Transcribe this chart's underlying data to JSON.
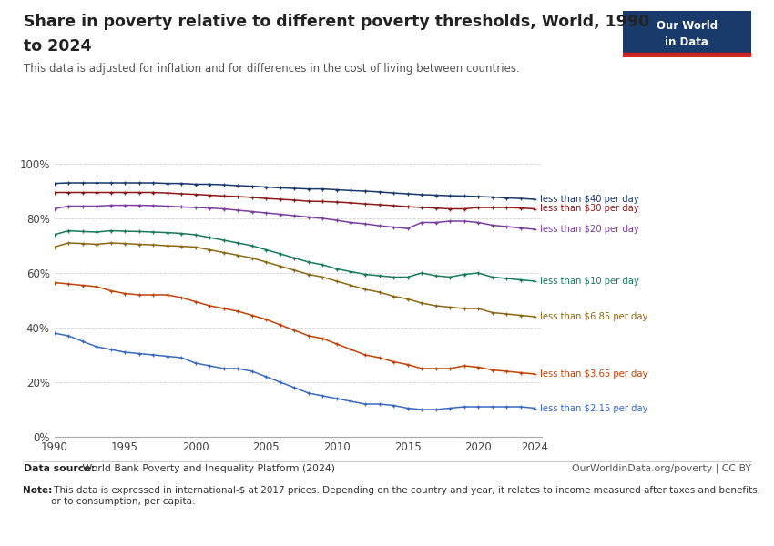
{
  "title_line1": "Share in poverty relative to different poverty thresholds, World, 1990",
  "title_line2": "to 2024",
  "subtitle": "This data is adjusted for inflation and for differences in the cost of living between countries.",
  "bg_color": "#ffffff",
  "plot_bg_color": "#ffffff",
  "grid_color": "#d0d0d0",
  "footer_source_bold": "Data source:",
  "footer_source_rest": " World Bank Poverty and Inequality Platform (2024)",
  "footer_right": "OurWorldinData.org/poverty | CC BY",
  "footer_note_bold": "Note:",
  "footer_note_rest": " This data is expressed in international-$ at 2017 prices. Depending on the country and year, it relates to income measured after taxes and benefits, or to consumption, per capita.",
  "series": [
    {
      "label": "less than $40 per day",
      "color": "#1a3a6b",
      "years": [
        1990,
        1991,
        1992,
        1993,
        1994,
        1995,
        1996,
        1997,
        1998,
        1999,
        2000,
        2001,
        2002,
        2003,
        2004,
        2005,
        2006,
        2007,
        2008,
        2009,
        2010,
        2011,
        2012,
        2013,
        2014,
        2015,
        2016,
        2017,
        2018,
        2019,
        2020,
        2021,
        2022,
        2023,
        2024
      ],
      "values": [
        92.8,
        93.0,
        93.0,
        93.0,
        93.0,
        93.0,
        93.0,
        93.0,
        92.8,
        92.8,
        92.5,
        92.5,
        92.3,
        92.0,
        91.8,
        91.5,
        91.2,
        91.0,
        90.8,
        90.8,
        90.5,
        90.2,
        90.0,
        89.7,
        89.3,
        89.0,
        88.7,
        88.5,
        88.3,
        88.2,
        88.0,
        87.8,
        87.5,
        87.3,
        87.0
      ]
    },
    {
      "label": "less than $30 per day",
      "color": "#8b1a1a",
      "years": [
        1990,
        1991,
        1992,
        1993,
        1994,
        1995,
        1996,
        1997,
        1998,
        1999,
        2000,
        2001,
        2002,
        2003,
        2004,
        2005,
        2006,
        2007,
        2008,
        2009,
        2010,
        2011,
        2012,
        2013,
        2014,
        2015,
        2016,
        2017,
        2018,
        2019,
        2020,
        2021,
        2022,
        2023,
        2024
      ],
      "values": [
        89.5,
        89.5,
        89.5,
        89.5,
        89.5,
        89.5,
        89.5,
        89.5,
        89.3,
        89.0,
        88.8,
        88.5,
        88.2,
        88.0,
        87.7,
        87.3,
        87.0,
        86.7,
        86.3,
        86.2,
        86.0,
        85.7,
        85.3,
        85.0,
        84.7,
        84.3,
        84.0,
        83.8,
        83.5,
        83.5,
        84.0,
        84.0,
        84.0,
        83.8,
        83.5
      ]
    },
    {
      "label": "less than $20 per day",
      "color": "#7b3fa0",
      "years": [
        1990,
        1991,
        1992,
        1993,
        1994,
        1995,
        1996,
        1997,
        1998,
        1999,
        2000,
        2001,
        2002,
        2003,
        2004,
        2005,
        2006,
        2007,
        2008,
        2009,
        2010,
        2011,
        2012,
        2013,
        2014,
        2015,
        2016,
        2017,
        2018,
        2019,
        2020,
        2021,
        2022,
        2023,
        2024
      ],
      "values": [
        83.5,
        84.5,
        84.5,
        84.5,
        84.8,
        84.8,
        84.8,
        84.7,
        84.5,
        84.2,
        84.0,
        83.8,
        83.5,
        83.0,
        82.5,
        82.0,
        81.5,
        81.0,
        80.5,
        80.0,
        79.3,
        78.5,
        78.0,
        77.3,
        76.8,
        76.3,
        78.5,
        78.5,
        79.0,
        79.0,
        78.5,
        77.5,
        77.0,
        76.5,
        76.0
      ]
    },
    {
      "label": "less than $10 per day",
      "color": "#1a7a5e",
      "years": [
        1990,
        1991,
        1992,
        1993,
        1994,
        1995,
        1996,
        1997,
        1998,
        1999,
        2000,
        2001,
        2002,
        2003,
        2004,
        2005,
        2006,
        2007,
        2008,
        2009,
        2010,
        2011,
        2012,
        2013,
        2014,
        2015,
        2016,
        2017,
        2018,
        2019,
        2020,
        2021,
        2022,
        2023,
        2024
      ],
      "values": [
        74.0,
        75.5,
        75.2,
        75.0,
        75.5,
        75.3,
        75.2,
        75.0,
        74.8,
        74.5,
        74.0,
        73.0,
        72.0,
        71.0,
        70.0,
        68.5,
        67.0,
        65.5,
        64.0,
        63.0,
        61.5,
        60.5,
        59.5,
        59.0,
        58.5,
        58.5,
        60.0,
        59.0,
        58.5,
        59.5,
        60.0,
        58.5,
        58.0,
        57.5,
        57.0
      ]
    },
    {
      "label": "less than $6.85 per day",
      "color": "#8b6914",
      "years": [
        1990,
        1991,
        1992,
        1993,
        1994,
        1995,
        1996,
        1997,
        1998,
        1999,
        2000,
        2001,
        2002,
        2003,
        2004,
        2005,
        2006,
        2007,
        2008,
        2009,
        2010,
        2011,
        2012,
        2013,
        2014,
        2015,
        2016,
        2017,
        2018,
        2019,
        2020,
        2021,
        2022,
        2023,
        2024
      ],
      "values": [
        69.5,
        71.0,
        70.8,
        70.5,
        71.0,
        70.8,
        70.5,
        70.3,
        70.0,
        69.8,
        69.5,
        68.5,
        67.5,
        66.5,
        65.5,
        64.0,
        62.5,
        61.0,
        59.5,
        58.5,
        57.0,
        55.5,
        54.0,
        53.0,
        51.5,
        50.5,
        49.0,
        48.0,
        47.5,
        47.0,
        47.0,
        45.5,
        45.0,
        44.5,
        44.0
      ]
    },
    {
      "label": "less than $3.65 per day",
      "color": "#c0440a",
      "years": [
        1990,
        1991,
        1992,
        1993,
        1994,
        1995,
        1996,
        1997,
        1998,
        1999,
        2000,
        2001,
        2002,
        2003,
        2004,
        2005,
        2006,
        2007,
        2008,
        2009,
        2010,
        2011,
        2012,
        2013,
        2014,
        2015,
        2016,
        2017,
        2018,
        2019,
        2020,
        2021,
        2022,
        2023,
        2024
      ],
      "values": [
        56.5,
        56.0,
        55.5,
        55.0,
        53.5,
        52.5,
        52.0,
        52.0,
        52.0,
        51.0,
        49.5,
        48.0,
        47.0,
        46.0,
        44.5,
        43.0,
        41.0,
        39.0,
        37.0,
        36.0,
        34.0,
        32.0,
        30.0,
        29.0,
        27.5,
        26.5,
        25.0,
        25.0,
        25.0,
        26.0,
        25.5,
        24.5,
        24.0,
        23.5,
        23.0
      ]
    },
    {
      "label": "less than $2.15 per day",
      "color": "#3a6abf",
      "years": [
        1990,
        1991,
        1992,
        1993,
        1994,
        1995,
        1996,
        1997,
        1998,
        1999,
        2000,
        2001,
        2002,
        2003,
        2004,
        2005,
        2006,
        2007,
        2008,
        2009,
        2010,
        2011,
        2012,
        2013,
        2014,
        2015,
        2016,
        2017,
        2018,
        2019,
        2020,
        2021,
        2022,
        2023,
        2024
      ],
      "values": [
        38.0,
        37.0,
        35.0,
        33.0,
        32.0,
        31.0,
        30.5,
        30.0,
        29.5,
        29.0,
        27.0,
        26.0,
        25.0,
        25.0,
        24.0,
        22.0,
        20.0,
        18.0,
        16.0,
        15.0,
        14.0,
        13.0,
        12.0,
        12.0,
        11.5,
        10.5,
        10.0,
        10.0,
        10.5,
        11.0,
        11.0,
        11.0,
        11.0,
        11.0,
        10.5
      ]
    }
  ],
  "xlim": [
    1990,
    2024
  ],
  "ylim": [
    0,
    100
  ],
  "yticks": [
    0,
    20,
    40,
    60,
    80,
    100
  ],
  "ytick_labels": [
    "0%",
    "20%",
    "40%",
    "60%",
    "80%",
    "100%"
  ],
  "xticks": [
    1990,
    1995,
    2000,
    2005,
    2010,
    2015,
    2020,
    2024
  ],
  "logo_bg": "#1a3a6b",
  "logo_red": "#cc2222",
  "logo_text1": "Our World",
  "logo_text2": "in Data"
}
